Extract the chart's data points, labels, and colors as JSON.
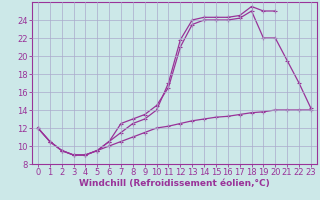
{
  "background_color": "#cce8e8",
  "grid_color": "#aaaacc",
  "line_color": "#993399",
  "marker": "+",
  "xlim": [
    -0.5,
    23.5
  ],
  "ylim": [
    8,
    26
  ],
  "xlabel": "Windchill (Refroidissement éolien,°C)",
  "xlabel_fontsize": 6.5,
  "xticks": [
    0,
    1,
    2,
    3,
    4,
    5,
    6,
    7,
    8,
    9,
    10,
    11,
    12,
    13,
    14,
    15,
    16,
    17,
    18,
    19,
    20,
    21,
    22,
    23
  ],
  "yticks": [
    8,
    10,
    12,
    14,
    16,
    18,
    20,
    22,
    24
  ],
  "tick_fontsize": 6,
  "line1_x": [
    0,
    1,
    2,
    3,
    4,
    5,
    6,
    7,
    8,
    9,
    10,
    11,
    12,
    13,
    14,
    15,
    16,
    17,
    18,
    19,
    20
  ],
  "line1_y": [
    12.0,
    10.5,
    9.5,
    9.0,
    9.0,
    9.5,
    10.5,
    11.5,
    12.5,
    13.0,
    14.0,
    17.0,
    21.8,
    24.0,
    24.3,
    24.3,
    24.3,
    24.5,
    25.5,
    25.0,
    25.0
  ],
  "line2_x": [
    0,
    1,
    2,
    3,
    4,
    5,
    6,
    7,
    8,
    9,
    10,
    11,
    12,
    13,
    14,
    15,
    16,
    17,
    18,
    19,
    20,
    21,
    22,
    23
  ],
  "line2_y": [
    12.0,
    10.5,
    9.5,
    9.0,
    9.0,
    9.5,
    10.5,
    12.5,
    13.0,
    13.5,
    14.5,
    16.5,
    21.0,
    23.5,
    24.0,
    24.0,
    24.0,
    24.2,
    25.0,
    22.0,
    22.0,
    19.5,
    17.0,
    14.2
  ],
  "line3_x": [
    0,
    1,
    2,
    3,
    4,
    5,
    6,
    7,
    8,
    9,
    10,
    11,
    12,
    13,
    14,
    15,
    16,
    17,
    18,
    19,
    20,
    21,
    22,
    23
  ],
  "line3_y": [
    12.0,
    10.5,
    9.5,
    9.0,
    9.0,
    9.5,
    10.0,
    10.5,
    11.0,
    11.5,
    12.0,
    12.2,
    12.5,
    12.8,
    13.0,
    13.2,
    13.3,
    13.5,
    13.7,
    13.8,
    14.0,
    14.0,
    14.0,
    14.0
  ]
}
